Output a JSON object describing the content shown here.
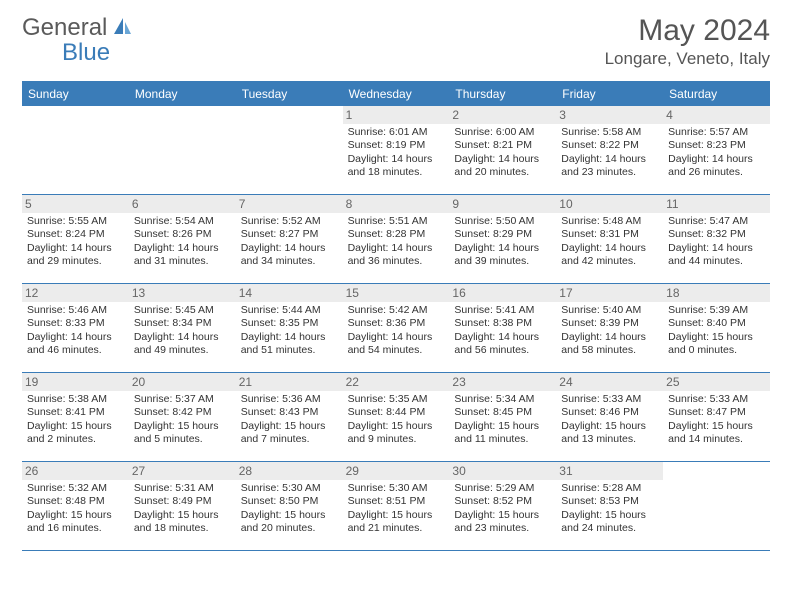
{
  "brand": {
    "part1": "General",
    "part2": "Blue"
  },
  "title": "May 2024",
  "location": "Longare, Veneto, Italy",
  "colors": {
    "header_bg": "#3a7cb8",
    "daynum_bg": "#ececec",
    "text": "#333333",
    "logo_gray": "#5a5a5a",
    "logo_blue": "#3a7cb8",
    "divider": "#3a7cb8",
    "background": "#ffffff"
  },
  "typography": {
    "title_fontsize": 30,
    "location_fontsize": 17,
    "header_fontsize": 12,
    "daynum_fontsize": 12,
    "info_fontsize": 10.5
  },
  "day_names": [
    "Sunday",
    "Monday",
    "Tuesday",
    "Wednesday",
    "Thursday",
    "Friday",
    "Saturday"
  ],
  "weeks": [
    [
      {
        "n": "",
        "sr": "",
        "ss": "",
        "dl": ""
      },
      {
        "n": "",
        "sr": "",
        "ss": "",
        "dl": ""
      },
      {
        "n": "",
        "sr": "",
        "ss": "",
        "dl": ""
      },
      {
        "n": "1",
        "sr": "Sunrise: 6:01 AM",
        "ss": "Sunset: 8:19 PM",
        "dl": "Daylight: 14 hours and 18 minutes."
      },
      {
        "n": "2",
        "sr": "Sunrise: 6:00 AM",
        "ss": "Sunset: 8:21 PM",
        "dl": "Daylight: 14 hours and 20 minutes."
      },
      {
        "n": "3",
        "sr": "Sunrise: 5:58 AM",
        "ss": "Sunset: 8:22 PM",
        "dl": "Daylight: 14 hours and 23 minutes."
      },
      {
        "n": "4",
        "sr": "Sunrise: 5:57 AM",
        "ss": "Sunset: 8:23 PM",
        "dl": "Daylight: 14 hours and 26 minutes."
      }
    ],
    [
      {
        "n": "5",
        "sr": "Sunrise: 5:55 AM",
        "ss": "Sunset: 8:24 PM",
        "dl": "Daylight: 14 hours and 29 minutes."
      },
      {
        "n": "6",
        "sr": "Sunrise: 5:54 AM",
        "ss": "Sunset: 8:26 PM",
        "dl": "Daylight: 14 hours and 31 minutes."
      },
      {
        "n": "7",
        "sr": "Sunrise: 5:52 AM",
        "ss": "Sunset: 8:27 PM",
        "dl": "Daylight: 14 hours and 34 minutes."
      },
      {
        "n": "8",
        "sr": "Sunrise: 5:51 AM",
        "ss": "Sunset: 8:28 PM",
        "dl": "Daylight: 14 hours and 36 minutes."
      },
      {
        "n": "9",
        "sr": "Sunrise: 5:50 AM",
        "ss": "Sunset: 8:29 PM",
        "dl": "Daylight: 14 hours and 39 minutes."
      },
      {
        "n": "10",
        "sr": "Sunrise: 5:48 AM",
        "ss": "Sunset: 8:31 PM",
        "dl": "Daylight: 14 hours and 42 minutes."
      },
      {
        "n": "11",
        "sr": "Sunrise: 5:47 AM",
        "ss": "Sunset: 8:32 PM",
        "dl": "Daylight: 14 hours and 44 minutes."
      }
    ],
    [
      {
        "n": "12",
        "sr": "Sunrise: 5:46 AM",
        "ss": "Sunset: 8:33 PM",
        "dl": "Daylight: 14 hours and 46 minutes."
      },
      {
        "n": "13",
        "sr": "Sunrise: 5:45 AM",
        "ss": "Sunset: 8:34 PM",
        "dl": "Daylight: 14 hours and 49 minutes."
      },
      {
        "n": "14",
        "sr": "Sunrise: 5:44 AM",
        "ss": "Sunset: 8:35 PM",
        "dl": "Daylight: 14 hours and 51 minutes."
      },
      {
        "n": "15",
        "sr": "Sunrise: 5:42 AM",
        "ss": "Sunset: 8:36 PM",
        "dl": "Daylight: 14 hours and 54 minutes."
      },
      {
        "n": "16",
        "sr": "Sunrise: 5:41 AM",
        "ss": "Sunset: 8:38 PM",
        "dl": "Daylight: 14 hours and 56 minutes."
      },
      {
        "n": "17",
        "sr": "Sunrise: 5:40 AM",
        "ss": "Sunset: 8:39 PM",
        "dl": "Daylight: 14 hours and 58 minutes."
      },
      {
        "n": "18",
        "sr": "Sunrise: 5:39 AM",
        "ss": "Sunset: 8:40 PM",
        "dl": "Daylight: 15 hours and 0 minutes."
      }
    ],
    [
      {
        "n": "19",
        "sr": "Sunrise: 5:38 AM",
        "ss": "Sunset: 8:41 PM",
        "dl": "Daylight: 15 hours and 2 minutes."
      },
      {
        "n": "20",
        "sr": "Sunrise: 5:37 AM",
        "ss": "Sunset: 8:42 PM",
        "dl": "Daylight: 15 hours and 5 minutes."
      },
      {
        "n": "21",
        "sr": "Sunrise: 5:36 AM",
        "ss": "Sunset: 8:43 PM",
        "dl": "Daylight: 15 hours and 7 minutes."
      },
      {
        "n": "22",
        "sr": "Sunrise: 5:35 AM",
        "ss": "Sunset: 8:44 PM",
        "dl": "Daylight: 15 hours and 9 minutes."
      },
      {
        "n": "23",
        "sr": "Sunrise: 5:34 AM",
        "ss": "Sunset: 8:45 PM",
        "dl": "Daylight: 15 hours and 11 minutes."
      },
      {
        "n": "24",
        "sr": "Sunrise: 5:33 AM",
        "ss": "Sunset: 8:46 PM",
        "dl": "Daylight: 15 hours and 13 minutes."
      },
      {
        "n": "25",
        "sr": "Sunrise: 5:33 AM",
        "ss": "Sunset: 8:47 PM",
        "dl": "Daylight: 15 hours and 14 minutes."
      }
    ],
    [
      {
        "n": "26",
        "sr": "Sunrise: 5:32 AM",
        "ss": "Sunset: 8:48 PM",
        "dl": "Daylight: 15 hours and 16 minutes."
      },
      {
        "n": "27",
        "sr": "Sunrise: 5:31 AM",
        "ss": "Sunset: 8:49 PM",
        "dl": "Daylight: 15 hours and 18 minutes."
      },
      {
        "n": "28",
        "sr": "Sunrise: 5:30 AM",
        "ss": "Sunset: 8:50 PM",
        "dl": "Daylight: 15 hours and 20 minutes."
      },
      {
        "n": "29",
        "sr": "Sunrise: 5:30 AM",
        "ss": "Sunset: 8:51 PM",
        "dl": "Daylight: 15 hours and 21 minutes."
      },
      {
        "n": "30",
        "sr": "Sunrise: 5:29 AM",
        "ss": "Sunset: 8:52 PM",
        "dl": "Daylight: 15 hours and 23 minutes."
      },
      {
        "n": "31",
        "sr": "Sunrise: 5:28 AM",
        "ss": "Sunset: 8:53 PM",
        "dl": "Daylight: 15 hours and 24 minutes."
      },
      {
        "n": "",
        "sr": "",
        "ss": "",
        "dl": ""
      }
    ]
  ]
}
